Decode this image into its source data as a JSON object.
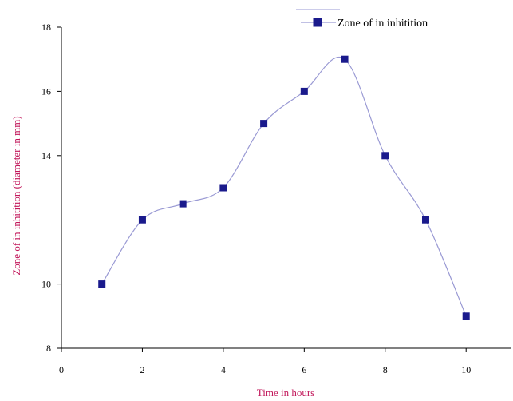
{
  "chart_data": {
    "type": "scatter",
    "xlabel": "Time in hours",
    "ylabel": "Zone of in inhitition (diameter in mm)",
    "xlim": [
      0,
      11.1
    ],
    "ylim": [
      8,
      18
    ],
    "x_ticks": [
      0,
      2,
      4,
      6,
      8,
      10
    ],
    "y_ticks": [
      8,
      10,
      14,
      16,
      18
    ],
    "grid": false,
    "legend": "top-right",
    "series": [
      {
        "name": "Zone of in inhitition",
        "marker": "square",
        "line": "smoothed",
        "x": [
          1,
          2,
          3,
          4,
          5,
          6,
          7,
          8,
          9,
          10
        ],
        "y": [
          10,
          12,
          12.5,
          13,
          15,
          16,
          17,
          14,
          12,
          9
        ]
      }
    ]
  },
  "colors": {
    "axis_title": "#c2185b",
    "marker": "#1a1a8c",
    "curve": "#9a9ad4",
    "axis": "#000000"
  }
}
